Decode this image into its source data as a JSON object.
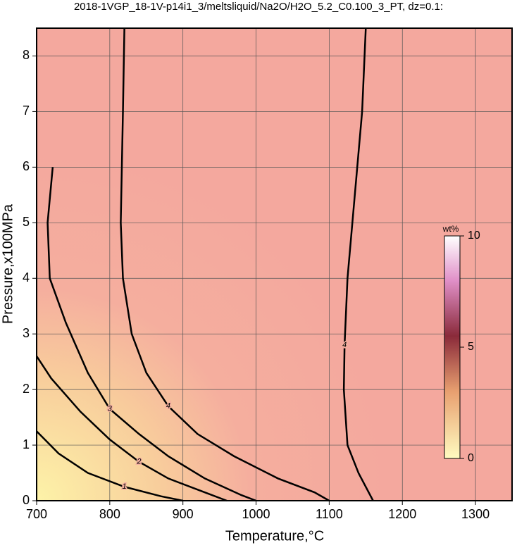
{
  "chart_data": {
    "type": "contour",
    "title": "2018-1VGP_18-1V-p14i1_3/meltsliquid/Na2O/H2O_5.2_C0.100_3_PT, dz=0.1:",
    "x_label": "Temperature,°C",
    "y_label": "Pressure,x100MPa",
    "xlim": [
      700,
      1350
    ],
    "ylim": [
      0,
      8.5
    ],
    "xticks": [
      700,
      800,
      900,
      1000,
      1100,
      1200,
      1300
    ],
    "yticks": [
      0,
      1,
      2,
      3,
      4,
      5,
      6,
      7,
      8
    ],
    "grid": true,
    "colorbar": {
      "label": "wt%",
      "lim": [
        0,
        10
      ],
      "ticks": [
        0,
        5,
        10
      ]
    },
    "contours": [
      {
        "level": 1,
        "x": [
          700,
          730,
          770,
          820,
          870,
          900
        ],
        "y": [
          1.25,
          0.85,
          0.5,
          0.25,
          0.08,
          0
        ]
      },
      {
        "level": 2,
        "x": [
          700,
          720,
          760,
          800,
          840,
          880,
          930,
          960
        ],
        "y": [
          2.6,
          2.2,
          1.6,
          1.1,
          0.7,
          0.4,
          0.15,
          0
        ]
      },
      {
        "level": 3,
        "x": [
          722,
          715,
          718,
          740,
          770,
          800,
          840,
          880,
          930,
          980,
          1000
        ],
        "y": [
          6.0,
          5.0,
          4.0,
          3.2,
          2.3,
          1.65,
          1.2,
          0.8,
          0.4,
          0.1,
          0
        ]
      },
      {
        "level": 4,
        "x": [
          820,
          818,
          815,
          818,
          830,
          850,
          880,
          920,
          970,
          1030,
          1080,
          1100
        ],
        "y": [
          8.5,
          7,
          5,
          4,
          3,
          2.3,
          1.7,
          1.2,
          0.8,
          0.4,
          0.15,
          0
        ]
      },
      {
        "level": 4,
        "x": [
          1160,
          1140,
          1125,
          1120,
          1121,
          1125,
          1135,
          1145,
          1150
        ],
        "y": [
          0,
          0.5,
          1,
          2,
          2.8,
          4,
          5.5,
          7,
          8.5
        ]
      }
    ]
  }
}
